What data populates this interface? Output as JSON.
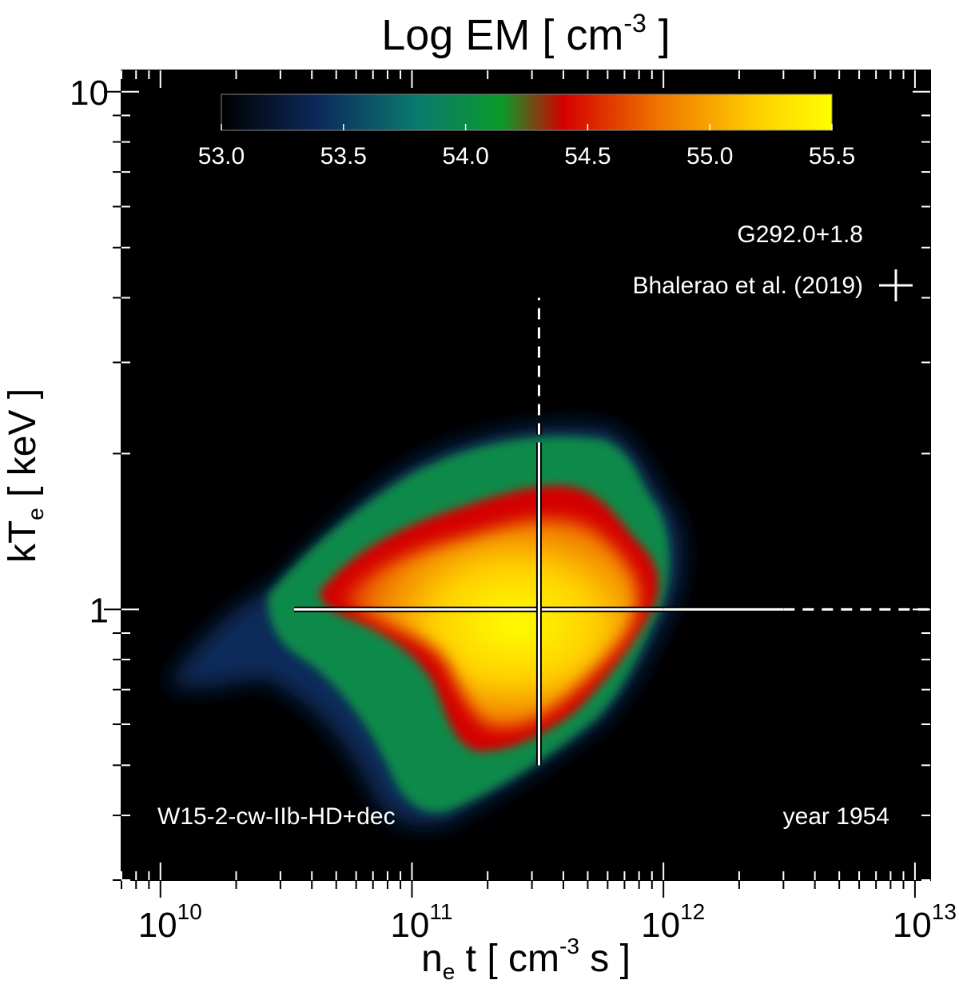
{
  "chart_data": {
    "type": "heatmap",
    "title_main": "Log EM [ cm",
    "title_sup": "-3",
    "title_end": " ]",
    "x_scale": "log",
    "y_scale": "log",
    "xlim": [
      7000000000.0,
      11500000000000.0
    ],
    "ylim": [
      0.3,
      11.0
    ],
    "x_ticks": [
      {
        "value": 10000000000.0,
        "base": "10",
        "exp": "10"
      },
      {
        "value": 100000000000.0,
        "base": "10",
        "exp": "11"
      },
      {
        "value": 1000000000000.0,
        "base": "10",
        "exp": "12"
      },
      {
        "value": 10000000000000.0,
        "base": "10",
        "exp": "13"
      }
    ],
    "y_ticks": [
      {
        "value": 1,
        "label": "1"
      },
      {
        "value": 10,
        "label": "10"
      }
    ],
    "xlabel": {
      "pre": "n",
      "sub": "e",
      "mid": " t [ cm",
      "sup": "-3",
      "post": " s ]"
    },
    "ylabel": {
      "pre": "kT",
      "sub": "e",
      "post": " [ keV ]"
    },
    "colorbar": {
      "range": [
        53.0,
        55.5
      ],
      "tick_labels": [
        "53.0",
        "53.5",
        "54.0",
        "54.5",
        "55.0",
        "55.5"
      ],
      "tick_values": [
        53.0,
        53.5,
        54.0,
        54.5,
        55.0,
        55.5
      ],
      "stops": [
        "#000000",
        "#0c2a5c",
        "#0a7a6e",
        "#0a9a2a",
        "#d40000",
        "#f07800",
        "#ffd000",
        "#ffff00"
      ]
    },
    "object_name": "G292.0+1.8",
    "observation_label": "Bhalerao et al. (2019)",
    "observation": {
      "x": 320000000000.0,
      "x_lo": 34000000000.0,
      "x_hi": 1000000000000.0,
      "x_hi_dashed": 3000000000000.0,
      "y": 1.0,
      "y_lo": 0.5,
      "y_hi": 2.0,
      "y_hi_dashed": 4.0
    },
    "model_label": "W15-2-cw-IIb-HD+dec",
    "epoch_label": "year 1954"
  }
}
